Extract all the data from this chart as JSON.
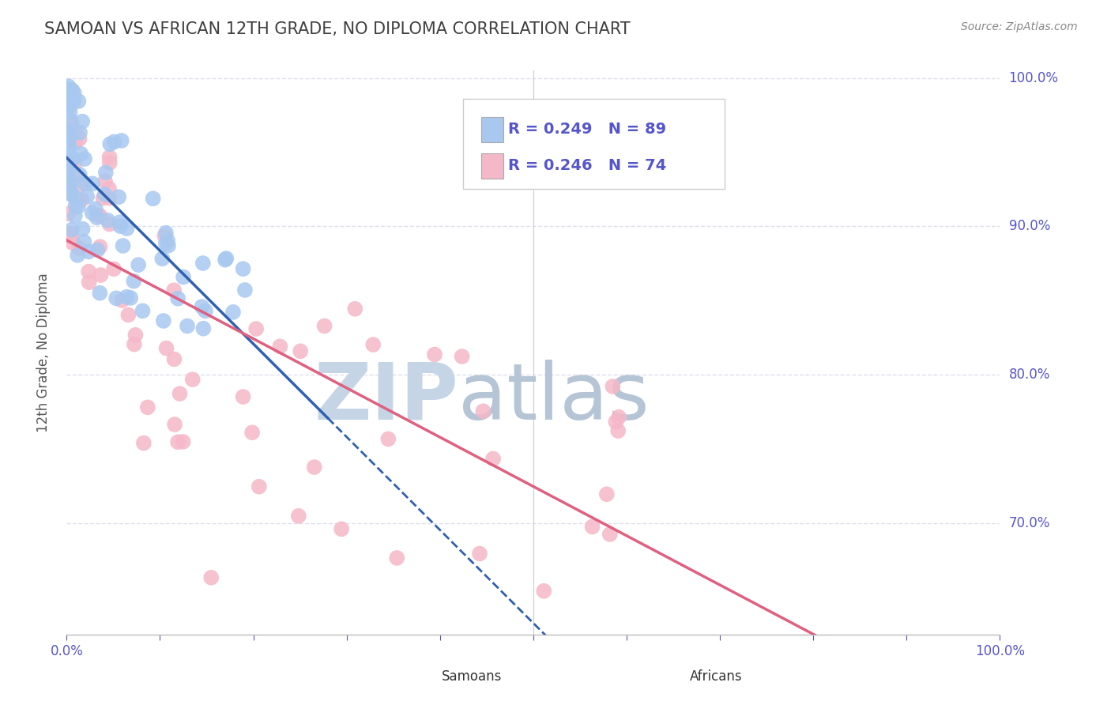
{
  "title": "SAMOAN VS AFRICAN 12TH GRADE, NO DIPLOMA CORRELATION CHART",
  "source": "Source: ZipAtlas.com",
  "ylabel": "12th Grade, No Diploma",
  "right_yticks": [
    0.7,
    0.8,
    0.9,
    1.0
  ],
  "right_ytick_labels": [
    "70.0%",
    "80.0%",
    "90.0%",
    "100.0%"
  ],
  "R_samoan": 0.249,
  "N_samoan": 89,
  "R_african": 0.246,
  "N_african": 74,
  "samoan_color": "#a8c8f0",
  "african_color": "#f5b8c8",
  "trend_samoan_color": "#3060b0",
  "trend_african_color": "#e06080",
  "watermark": "ZIPatlas",
  "watermark_zip_color": "#c8d8e8",
  "watermark_atlas_color": "#b0c8d8",
  "background_color": "#ffffff",
  "title_color": "#404040",
  "axis_label_color": "#5555cc",
  "grid_color": "#e0e0ee",
  "legend_border_color": "#cccccc",
  "ylim_low": 0.625,
  "ylim_high": 1.005,
  "xlim_low": 0.0,
  "xlim_high": 1.0
}
